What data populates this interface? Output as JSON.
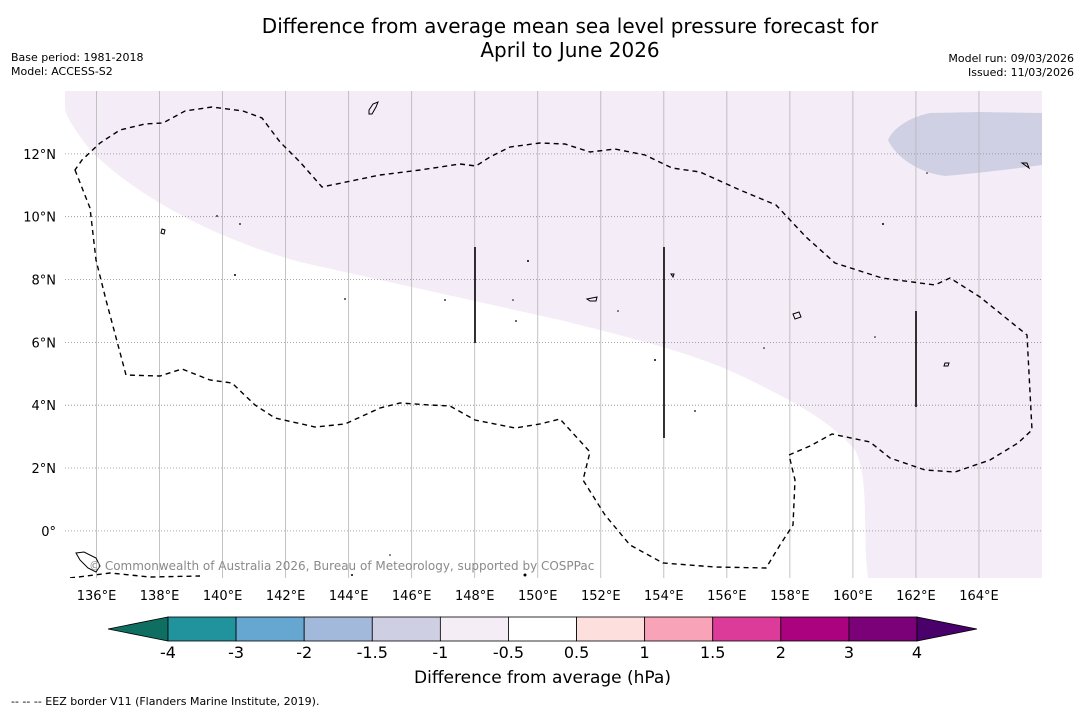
{
  "title": {
    "line1": "Difference from average mean sea level pressure forecast for",
    "line2": "April to June 2026"
  },
  "meta": {
    "base_period": "Base period: 1981-2018",
    "model": "Model: ACCESS-S2",
    "model_run": "Model run: 09/03/2026",
    "issued": "Issued: 11/03/2026"
  },
  "copyright": "© Commonwealth of Australia 2026, Bureau of Meteorology, supported by COSPPac",
  "map": {
    "lon_range": [
      135,
      166
    ],
    "lat_range": [
      -1.5,
      14
    ],
    "lon_ticks": [
      "136°E",
      "138°E",
      "140°E",
      "142°E",
      "144°E",
      "146°E",
      "148°E",
      "150°E",
      "152°E",
      "154°E",
      "156°E",
      "158°E",
      "160°E",
      "162°E",
      "164°E"
    ],
    "lat_ticks": [
      "12°N",
      "10°N",
      "8°N",
      "6°N",
      "4°N",
      "2°N",
      "0°"
    ],
    "regions": [
      {
        "name": "-1 to -0.5 hPa",
        "color": "#f4ecf6"
      },
      {
        "name": "-1.5 to -1 hPa",
        "color": "#d0d0e4"
      }
    ]
  },
  "colorbar": {
    "colors": [
      "#0e6e62",
      "#21939d",
      "#65a7d1",
      "#a3b9dc",
      "#cfcfe4",
      "#f5edf6",
      "#ffffff",
      "#fde0de",
      "#f9a3b8",
      "#dd3b9a",
      "#ab0280",
      "#7a0177",
      "#4a006a"
    ],
    "labels": [
      "-4",
      "-3",
      "-2",
      "-1.5",
      "-1",
      "-0.5",
      "0.5",
      "1",
      "1.5",
      "2",
      "3",
      "4"
    ],
    "title": "Difference from average (hPa)"
  },
  "footnote": "--  --  -- EEZ border V11 (Flanders Marine Institute, 2019)."
}
